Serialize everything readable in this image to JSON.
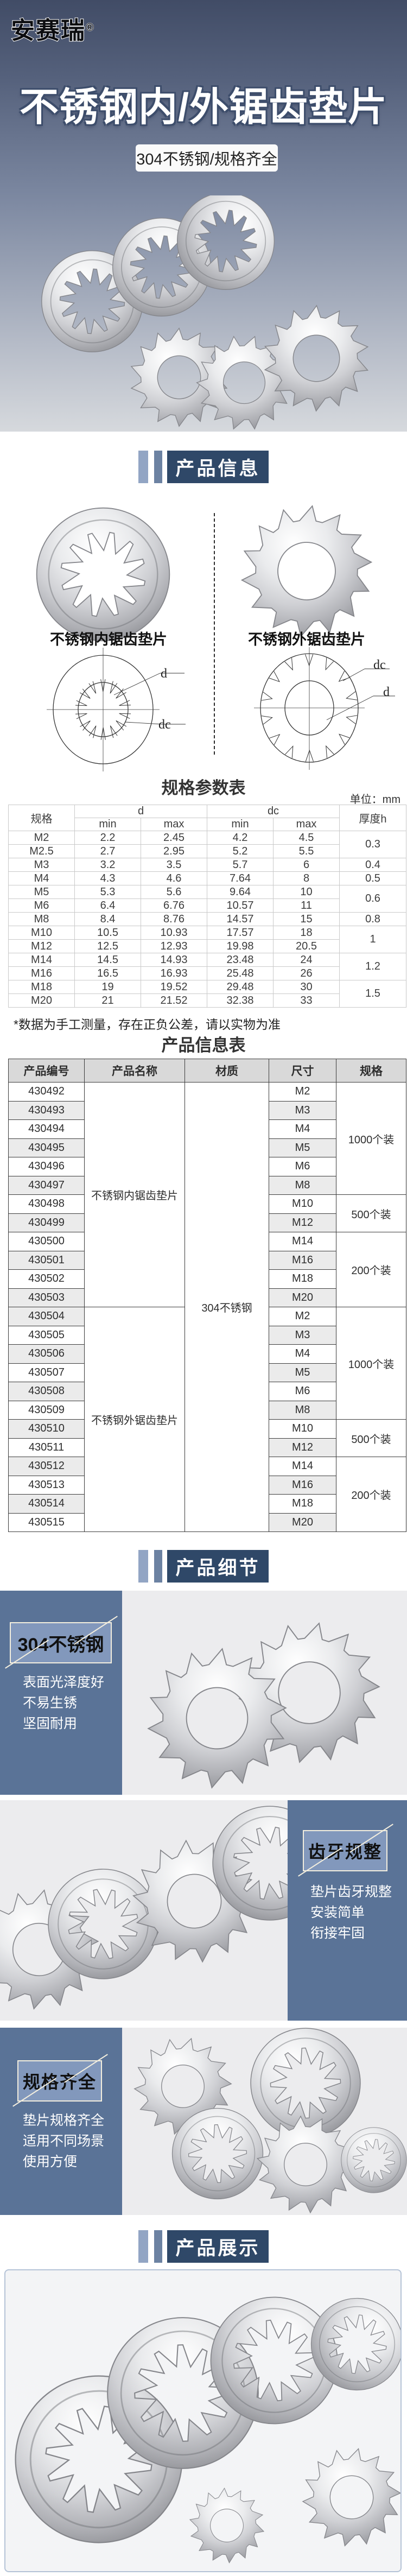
{
  "brand": {
    "name": "安赛瑞",
    "registered": "®"
  },
  "hero": {
    "title": "不锈钢内/外锯齿垫片",
    "badge": "304不锈钢/规格齐全"
  },
  "section_headers": {
    "info": "产品信息",
    "detail": "产品细节",
    "showcase": "产品展示"
  },
  "info_section": {
    "internal_label": "不锈钢内锯齿垫片",
    "external_label": "不锈钢外锯齿垫片",
    "dim_d": "d",
    "dim_dc": "dc"
  },
  "spec_table": {
    "title": "规格参数表",
    "unit": "单位：mm",
    "headers": {
      "spec": "规格",
      "d": "d",
      "dc": "dc",
      "min": "min",
      "max": "max",
      "thickness": "厚度h"
    },
    "rows": [
      {
        "spec": "M2",
        "d_min": "2.2",
        "d_max": "2.45",
        "dc_min": "4.2",
        "dc_max": "4.5",
        "thickness": "0.3",
        "t_span": 2
      },
      {
        "spec": "M2.5",
        "d_min": "2.7",
        "d_max": "2.95",
        "dc_min": "5.2",
        "dc_max": "5.5"
      },
      {
        "spec": "M3",
        "d_min": "3.2",
        "d_max": "3.5",
        "dc_min": "5.7",
        "dc_max": "6",
        "thickness": "0.4",
        "t_span": 1
      },
      {
        "spec": "M4",
        "d_min": "4.3",
        "d_max": "4.6",
        "dc_min": "7.64",
        "dc_max": "8",
        "thickness": "0.5",
        "t_span": 1
      },
      {
        "spec": "M5",
        "d_min": "5.3",
        "d_max": "5.6",
        "dc_min": "9.64",
        "dc_max": "10",
        "thickness": "0.6",
        "t_span": 2
      },
      {
        "spec": "M6",
        "d_min": "6.4",
        "d_max": "6.76",
        "dc_min": "10.57",
        "dc_max": "11"
      },
      {
        "spec": "M8",
        "d_min": "8.4",
        "d_max": "8.76",
        "dc_min": "14.57",
        "dc_max": "15",
        "thickness": "0.8",
        "t_span": 1
      },
      {
        "spec": "M10",
        "d_min": "10.5",
        "d_max": "10.93",
        "dc_min": "17.57",
        "dc_max": "18",
        "thickness": "1",
        "t_span": 2
      },
      {
        "spec": "M12",
        "d_min": "12.5",
        "d_max": "12.93",
        "dc_min": "19.98",
        "dc_max": "20.5"
      },
      {
        "spec": "M14",
        "d_min": "14.5",
        "d_max": "14.93",
        "dc_min": "23.48",
        "dc_max": "24",
        "thickness": "1.2",
        "t_span": 2
      },
      {
        "spec": "M16",
        "d_min": "16.5",
        "d_max": "16.93",
        "dc_min": "25.48",
        "dc_max": "26"
      },
      {
        "spec": "M18",
        "d_min": "19",
        "d_max": "19.52",
        "dc_min": "29.48",
        "dc_max": "30",
        "thickness": "1.5",
        "t_span": 2
      },
      {
        "spec": "M20",
        "d_min": "21",
        "d_max": "21.52",
        "dc_min": "32.38",
        "dc_max": "33"
      }
    ],
    "note": "*数据为手工测量，存在正负公差，请以实物为准"
  },
  "product_table": {
    "title": "产品信息表",
    "headers": [
      "产品编号",
      "产品名称",
      "材质",
      "尺寸",
      "规格"
    ],
    "material": "304不锈钢",
    "packs": [
      "1000个装",
      "500个装",
      "200个装"
    ],
    "pack_spans": [
      6,
      2,
      4
    ],
    "groups": [
      {
        "name": "不锈钢内锯齿垫片",
        "codes": [
          "430492",
          "430493",
          "430494",
          "430495",
          "430496",
          "430497",
          "430498",
          "430499",
          "430500",
          "430501",
          "430502",
          "430503"
        ],
        "sizes": [
          "M2",
          "M3",
          "M4",
          "M5",
          "M6",
          "M8",
          "M10",
          "M12",
          "M14",
          "M16",
          "M18",
          "M20"
        ]
      },
      {
        "name": "不锈钢外锯齿垫片",
        "codes": [
          "430504",
          "430505",
          "430506",
          "430507",
          "430508",
          "430509",
          "430510",
          "430511",
          "430512",
          "430513",
          "430514",
          "430515"
        ],
        "sizes": [
          "M2",
          "M3",
          "M4",
          "M5",
          "M6",
          "M8",
          "M10",
          "M12",
          "M14",
          "M16",
          "M18",
          "M20"
        ]
      }
    ]
  },
  "details": [
    {
      "label": "304不锈钢",
      "lines": [
        "表面光泽度好",
        "不易生锈",
        "坚固耐用"
      ]
    },
    {
      "label": "齿牙规整",
      "lines": [
        "垫片齿牙规整",
        "安装简单",
        "衔接牢固"
      ]
    },
    {
      "label": "规格齐全",
      "lines": [
        "垫片规格齐全",
        "适用不同场景",
        "使用方便"
      ]
    }
  ],
  "colors": {
    "accent_dark": "#2f4868",
    "accent_mid": "#6c82a2",
    "accent_light": "#92a5c4",
    "sidebar_blue": "#5a7397",
    "label_box_blue": "#8298bc"
  }
}
